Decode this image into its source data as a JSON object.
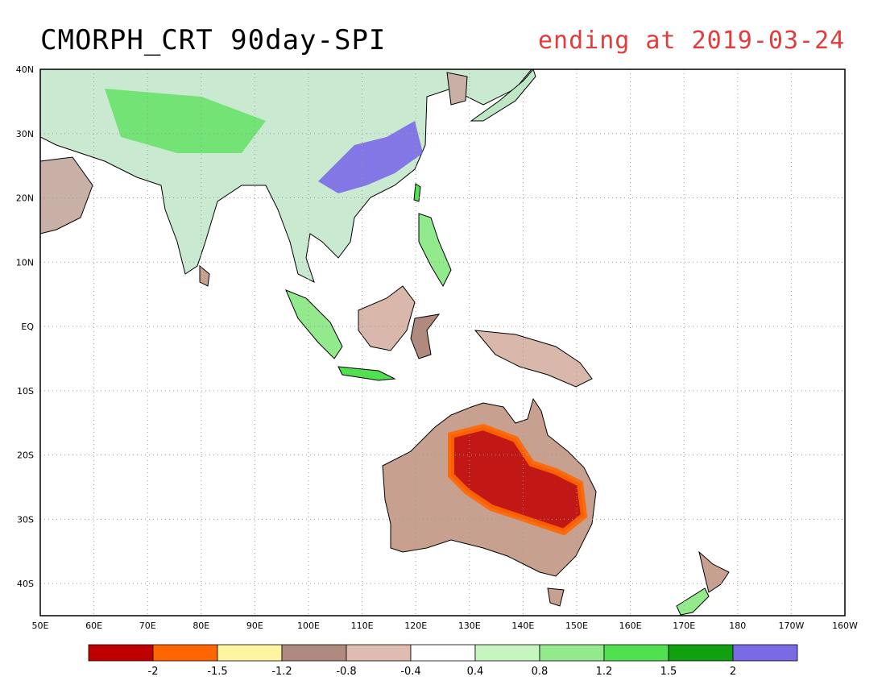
{
  "title": {
    "main": "CMORPH_CRT 90day-SPI",
    "date": "ending at 2019-03-24",
    "date_color": "#e23c3c"
  },
  "map": {
    "lon_range": [
      "50E",
      "160W"
    ],
    "lat_range": [
      "45S",
      "40N"
    ],
    "lon_ticks": [
      "50E",
      "60E",
      "70E",
      "80E",
      "90E",
      "100E",
      "110E",
      "120E",
      "130E",
      "140E",
      "150E",
      "160E",
      "170E",
      "180",
      "170W",
      "160W"
    ],
    "lat_ticks": [
      "40N",
      "30N",
      "20N",
      "10N",
      "EQ",
      "10S",
      "20S",
      "30S",
      "40S"
    ],
    "grid": true
  },
  "legend": {
    "labels": [
      "-2",
      "-1.5",
      "-1.2",
      "-0.8",
      "-0.4",
      "0.4",
      "0.8",
      "1.2",
      "1.5",
      "2"
    ],
    "colors": [
      "#c00000",
      "#ff6600",
      "#fff5a0",
      "#b08a7e",
      "#e0bcb0",
      "#ffffff",
      "#c6f5c0",
      "#92ea8c",
      "#50e050",
      "#10a010",
      "#7a6ae6"
    ]
  }
}
